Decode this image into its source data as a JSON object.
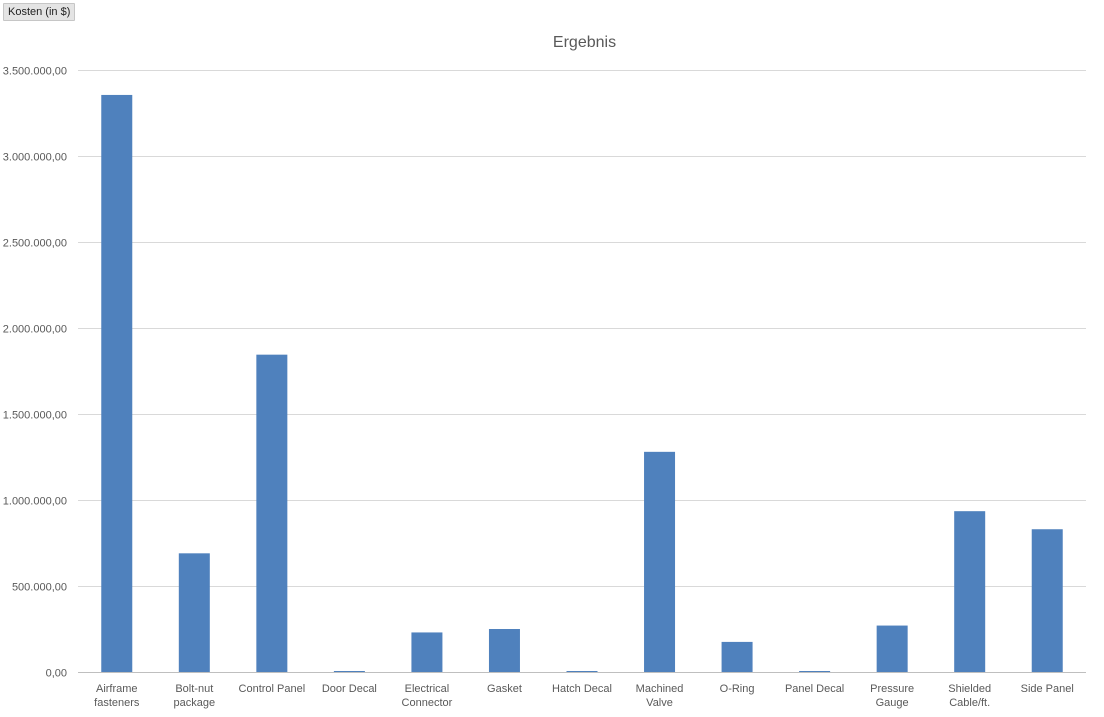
{
  "field_button": {
    "label": "Kosten (in  $)"
  },
  "chart_data": {
    "type": "bar",
    "title": "Ergebnis",
    "xlabel": "",
    "ylabel": "",
    "categories": [
      "Airframe fasteners",
      "Bolt-nut package",
      "Control Panel",
      "Door Decal",
      "Electrical Connector",
      "Gasket",
      "Hatch Decal",
      "Machined Valve",
      "O-Ring",
      "Panel Decal",
      "Pressure Gauge",
      "Shielded Cable/ft.",
      "Side Panel"
    ],
    "values": [
      3355000,
      690000,
      1845000,
      5000,
      230000,
      250000,
      5000,
      1280000,
      175000,
      5000,
      270000,
      935000,
      830000
    ],
    "ylim": [
      0,
      3500000
    ],
    "yticks": [
      0,
      500000,
      1000000,
      1500000,
      2000000,
      2500000,
      3000000,
      3500000
    ],
    "ytick_labels": [
      "0,00",
      "500.000,00",
      "1.000.000,00",
      "1.500.000,00",
      "2.000.000,00",
      "2.500.000,00",
      "3.000.000,00",
      "3.500.000,00"
    ],
    "grid": true,
    "legend": "none",
    "colors": {
      "bar": "#4f81bd",
      "grid": "#d9d9d9",
      "axis": "#bfbfbf"
    }
  }
}
